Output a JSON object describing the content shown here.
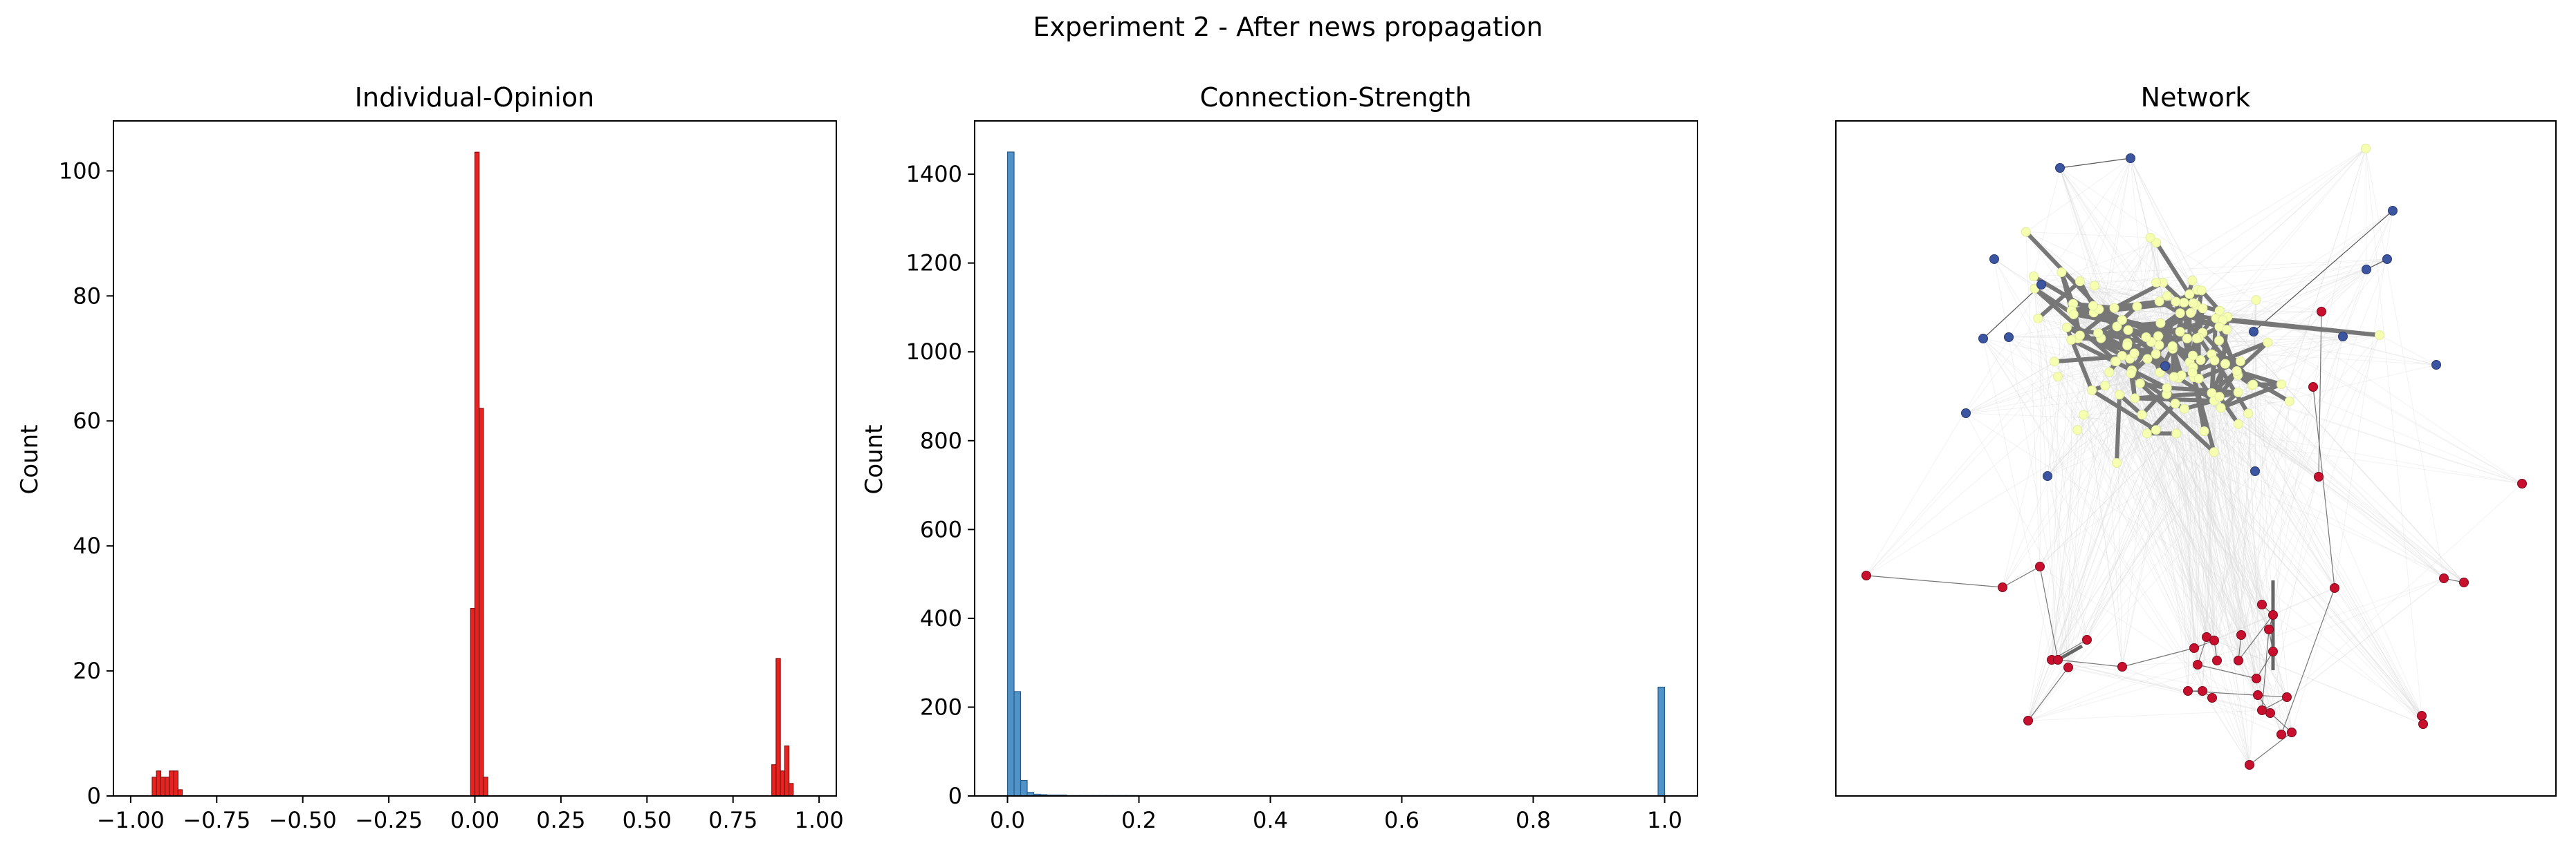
{
  "figure": {
    "suptitle": "Experiment 2 - After news propagation"
  },
  "chart_data": [
    {
      "type": "bar",
      "subtype": "histogram",
      "title": "Individual-Opinion",
      "xlabel": "",
      "ylabel": "Count",
      "xlim": [
        -1.05,
        1.05
      ],
      "ylim": [
        0,
        108
      ],
      "xticks": [
        -1.0,
        -0.75,
        -0.5,
        -0.25,
        0.0,
        0.25,
        0.5,
        0.75,
        1.0
      ],
      "xtick_labels": [
        "−1.00",
        "−0.75",
        "−0.50",
        "−0.25",
        "0.00",
        "0.25",
        "0.50",
        "0.75",
        "1.00"
      ],
      "yticks": [
        0,
        20,
        40,
        60,
        80,
        100
      ],
      "ytick_labels": [
        "0",
        "20",
        "40",
        "60",
        "80",
        "100"
      ],
      "bin_width": 0.0125,
      "bin_starts": [
        -0.9375,
        -0.925,
        -0.9125,
        -0.9,
        -0.8875,
        -0.875,
        -0.8625,
        -0.85,
        -0.0125,
        0.0,
        0.0125,
        0.025,
        0.8625,
        0.875,
        0.8875,
        0.9,
        0.9125
      ],
      "counts": [
        3,
        4,
        3,
        3,
        4,
        4,
        1,
        0,
        30,
        103,
        62,
        3,
        5,
        22,
        4,
        8,
        2
      ],
      "color": "#e8231f",
      "edge_color": "#8a1010",
      "grid": false
    },
    {
      "type": "bar",
      "subtype": "histogram",
      "title": "Connection-Strength",
      "xlabel": "",
      "ylabel": "Count",
      "xlim": [
        -0.05,
        1.05
      ],
      "ylim": [
        0,
        1520
      ],
      "xticks": [
        0.0,
        0.2,
        0.4,
        0.6,
        0.8,
        1.0
      ],
      "xtick_labels": [
        "0.0",
        "0.2",
        "0.4",
        "0.6",
        "0.8",
        "1.0"
      ],
      "yticks": [
        0,
        200,
        400,
        600,
        800,
        1000,
        1200,
        1400
      ],
      "ytick_labels": [
        "0",
        "200",
        "400",
        "600",
        "800",
        "1000",
        "1200",
        "1400"
      ],
      "bin_width": 0.01,
      "bin_starts": [
        0.0,
        0.01,
        0.02,
        0.03,
        0.04,
        0.05,
        0.06,
        0.07,
        0.08,
        0.09,
        0.1,
        0.11,
        0.12,
        0.13,
        0.14,
        0.15,
        0.16,
        0.17,
        0.18,
        0.19,
        0.99
      ],
      "counts": [
        1450,
        235,
        35,
        8,
        4,
        3,
        2,
        2,
        2,
        1,
        1,
        1,
        1,
        1,
        1,
        1,
        1,
        1,
        1,
        1,
        245
      ],
      "color": "#4f93c8",
      "edge_color": "#2a5b85",
      "grid": false
    },
    {
      "type": "network",
      "title": "Network",
      "axes_visible": false,
      "clusters": [
        {
          "name": "yellow",
          "color": "#f6ffb0",
          "count": 120
        },
        {
          "name": "blue",
          "color": "#3c55a0",
          "count": 20
        },
        {
          "name": "red",
          "color": "#c8102e",
          "count": 40
        }
      ]
    }
  ]
}
